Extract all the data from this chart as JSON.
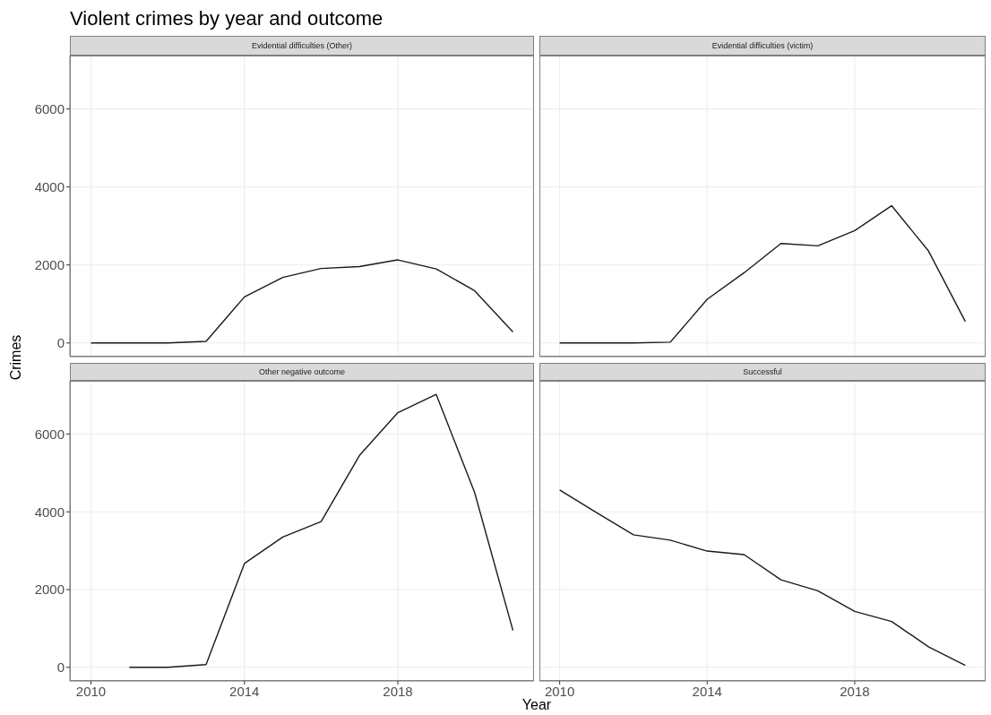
{
  "chart_data": [
    {
      "type": "line",
      "title": "Violent crimes by year and outcome",
      "subtitle": "Evidential difficulties (Other)",
      "ylabel": "Crimes",
      "x": [
        2010,
        2011,
        2012,
        2013,
        2014,
        2015,
        2016,
        2017,
        2018,
        2019,
        2020,
        2021
      ],
      "series": [
        {
          "color": "#1a1a1a",
          "values": [
            0,
            0,
            0,
            40,
            1180,
            1680,
            1910,
            1960,
            2130,
            1900,
            1340,
            280
          ]
        }
      ],
      "xlim": [
        2009.45,
        2021.55
      ],
      "xticks": [
        2010,
        2014,
        2018
      ],
      "ylim": [
        -350,
        7370
      ],
      "yticks": [
        0,
        2000,
        4000,
        6000
      ],
      "grid": true,
      "tick_labels": "y"
    },
    {
      "type": "line",
      "subtitle": "Evidential difficulties (victim)",
      "x": [
        2010,
        2011,
        2012,
        2013,
        2014,
        2015,
        2016,
        2017,
        2018,
        2019,
        2020,
        2021
      ],
      "series": [
        {
          "color": "#1a1a1a",
          "values": [
            0,
            0,
            0,
            20,
            1120,
            1800,
            2550,
            2490,
            2880,
            3520,
            2360,
            550
          ]
        }
      ],
      "xlim": [
        2009.45,
        2021.55
      ],
      "xticks": [
        2010,
        2014,
        2018
      ],
      "ylim": [
        -350,
        7370
      ],
      "yticks": [
        0,
        2000,
        4000,
        6000
      ],
      "grid": true,
      "tick_labels": false
    },
    {
      "type": "line",
      "subtitle": "Other negative outcome",
      "xlabel": "Year",
      "x": [
        2011,
        2012,
        2013,
        2014,
        2015,
        2016,
        2017,
        2018,
        2019,
        2020,
        2021
      ],
      "series": [
        {
          "color": "#1a1a1a",
          "values": [
            0,
            0,
            70,
            2670,
            3350,
            3750,
            5450,
            6550,
            7020,
            4500,
            950
          ]
        }
      ],
      "xlim": [
        2009.45,
        2021.55
      ],
      "xticks": [
        2010,
        2014,
        2018
      ],
      "ylim": [
        -350,
        7370
      ],
      "yticks": [
        0,
        2000,
        4000,
        6000
      ],
      "grid": true
    },
    {
      "type": "line",
      "subtitle": "Successful",
      "x": [
        2010,
        2011,
        2012,
        2013,
        2014,
        2015,
        2016,
        2017,
        2018,
        2019,
        2020,
        2021
      ],
      "series": [
        {
          "color": "#1a1a1a",
          "values": [
            4560,
            3980,
            3410,
            3270,
            2990,
            2900,
            2250,
            1970,
            1440,
            1180,
            530,
            50
          ]
        }
      ],
      "xlim": [
        2009.45,
        2021.55
      ],
      "xticks": [
        2010,
        2014,
        2018
      ],
      "ylim": [
        -350,
        7370
      ],
      "yticks": [
        0,
        2000,
        4000,
        6000
      ],
      "grid": true,
      "tick_labels": "x"
    }
  ]
}
